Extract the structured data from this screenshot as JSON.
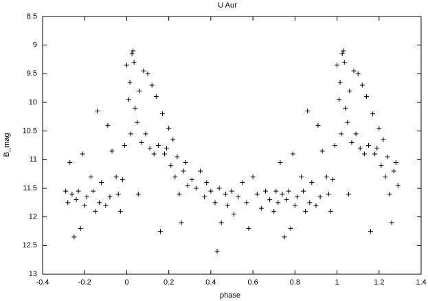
{
  "chart_data": {
    "type": "scatter",
    "title": "U Aur",
    "x_label": "phase",
    "y_label": "B_mag",
    "color": "#000000",
    "y_inverted": true,
    "xlim": [
      -0.4,
      1.4
    ],
    "xticks": [
      -0.4,
      -0.2,
      0,
      0.2,
      0.4,
      0.6,
      0.8,
      1,
      1.2,
      1.4
    ],
    "ylim": [
      8.5,
      13
    ],
    "yticks": [
      8.5,
      9,
      9.5,
      10,
      10.5,
      11,
      11.5,
      12,
      12.5,
      13
    ],
    "x": [
      -0.29,
      -0.28,
      -0.27,
      -0.26,
      -0.25,
      -0.24,
      -0.23,
      -0.22,
      -0.21,
      -0.2,
      -0.19,
      -0.17,
      -0.16,
      -0.15,
      -0.14,
      -0.13,
      -0.12,
      -0.1,
      -0.09,
      -0.08,
      -0.07,
      -0.05,
      -0.04,
      -0.03,
      -0.02,
      -0.01,
      0,
      0.01,
      0.015,
      0.02,
      0.025,
      0.03,
      0.035,
      0.04,
      0.05,
      0.055,
      0.06,
      0.07,
      0.08,
      0.09,
      0.1,
      0.11,
      0.12,
      0.13,
      0.14,
      0.15,
      0.16,
      0.17,
      0.18,
      0.19,
      0.2,
      0.21,
      0.22,
      0.23,
      0.24,
      0.25,
      0.26,
      0.27,
      0.28,
      0.29,
      0.31,
      0.33,
      0.35,
      0.37,
      0.38,
      0.4,
      0.42,
      0.43,
      0.44,
      0.45,
      0.47,
      0.48,
      0.5,
      0.51,
      0.53,
      0.55,
      0.57,
      0.58,
      0.6,
      0.62,
      0.64,
      0.66,
      0.68,
      0.7,
      0.71,
      0.72,
      0.73,
      0.74,
      0.75,
      0.76,
      0.77,
      0.78,
      0.79,
      0.8,
      0.81,
      0.83,
      0.84,
      0.85,
      0.86,
      0.87,
      0.88,
      0.9,
      0.91,
      0.92,
      0.93,
      0.95,
      0.96,
      0.97,
      0.98,
      0.99,
      1,
      1.01,
      1.015,
      1.02,
      1.025,
      1.03,
      1.035,
      1.04,
      1.05,
      1.055,
      1.06,
      1.07,
      1.08,
      1.09,
      1.1,
      1.11,
      1.12,
      1.13,
      1.14,
      1.15,
      1.16,
      1.17,
      1.18,
      1.19,
      1.2,
      1.21,
      1.22,
      1.23,
      1.24,
      1.25,
      1.26,
      1.27,
      1.28,
      1.29
    ],
    "y": [
      11.55,
      11.75,
      11.05,
      11.6,
      12.35,
      11.7,
      11.55,
      12.2,
      10.9,
      11.8,
      11.65,
      11.3,
      11.55,
      11.9,
      10.15,
      11.75,
      11.4,
      11.8,
      10.4,
      11.65,
      10.85,
      11.3,
      11.6,
      11.9,
      11.35,
      10.75,
      9.35,
      9.95,
      9.65,
      10.55,
      9.15,
      9.1,
      9.3,
      10.1,
      10.35,
      11.6,
      9.8,
      10.7,
      9.45,
      10.55,
      9.5,
      10.8,
      9.7,
      10.9,
      9.9,
      10.75,
      12.25,
      10.2,
      10.9,
      10.8,
      10.45,
      11.1,
      10.65,
      11.3,
      10.95,
      11.6,
      12.1,
      11.2,
      11.05,
      11.45,
      11.35,
      11.5,
      11.2,
      11.65,
      11.4,
      11.55,
      11.75,
      12.6,
      11.5,
      12.1,
      11.6,
      11.8,
      11.55,
      11.95,
      11.65,
      11.4,
      11.75,
      12.2,
      11.3,
      11.6,
      11.85,
      11.55,
      11.7,
      11.9,
      11.55,
      11.75,
      11.05,
      11.6,
      12.35,
      11.7,
      11.55,
      12.2,
      10.9,
      11.8,
      11.65,
      11.3,
      11.55,
      11.9,
      10.15,
      11.75,
      11.4,
      11.8,
      10.4,
      11.65,
      10.85,
      11.3,
      11.6,
      11.9,
      11.35,
      10.75,
      9.35,
      9.95,
      9.65,
      10.55,
      9.15,
      9.1,
      9.3,
      10.1,
      10.35,
      11.6,
      9.8,
      10.7,
      9.45,
      10.55,
      9.5,
      10.8,
      9.7,
      10.9,
      9.9,
      10.75,
      12.25,
      10.2,
      10.9,
      10.8,
      10.45,
      11.1,
      10.65,
      11.3,
      10.95,
      11.6,
      12.1,
      11.2,
      11.05,
      11.45
    ]
  }
}
